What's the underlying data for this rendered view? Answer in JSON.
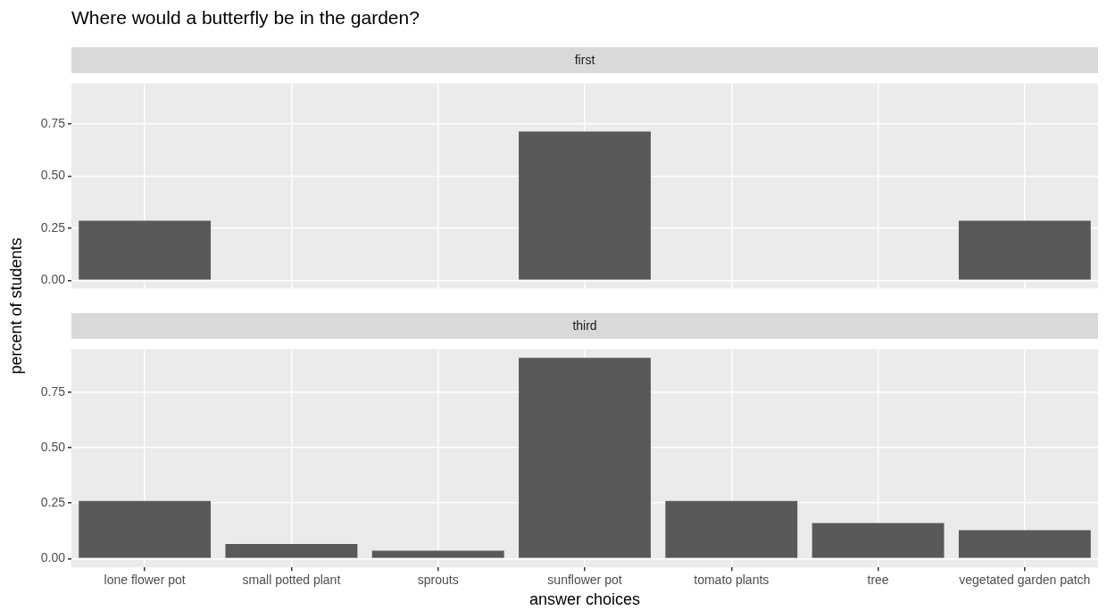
{
  "chart_data": [
    {
      "type": "bar",
      "title": "Where would a butterfly be in the garden?",
      "subtitle": "first",
      "ylabel": "percent of students",
      "categories": [
        null,
        null,
        null,
        null,
        null,
        null,
        null
      ],
      "values": [
        0.286,
        0,
        0,
        0.714,
        0,
        0,
        0.286
      ],
      "color": "#595959",
      "ylim": [
        -0.04,
        0.945
      ],
      "yticks": [
        {
          "value": 0,
          "label": "0.00"
        },
        {
          "value": 0.25,
          "label": "0.25"
        },
        {
          "value": 0.5,
          "label": "0.50"
        },
        {
          "value": 0.75,
          "label": "0.75"
        }
      ],
      "grid": true,
      "legend": false,
      "tick_labels": "y"
    },
    {
      "type": "bar",
      "subtitle": "third",
      "xlabel": "answer choices",
      "categories": [
        "lone flower pot",
        "small potted plant",
        "sprouts",
        "sunflower pot",
        "tomato plants",
        "tree",
        "vegetated garden patch"
      ],
      "values": [
        0.26,
        0.065,
        0.035,
        0.905,
        0.26,
        0.16,
        0.128
      ],
      "color": "#595959",
      "ylim": [
        -0.04,
        0.945
      ],
      "yticks": [
        {
          "value": 0,
          "label": "0.00"
        },
        {
          "value": 0.25,
          "label": "0.25"
        },
        {
          "value": 0.5,
          "label": "0.50"
        },
        {
          "value": 0.75,
          "label": "0.75"
        }
      ],
      "grid": true,
      "legend": false
    }
  ]
}
